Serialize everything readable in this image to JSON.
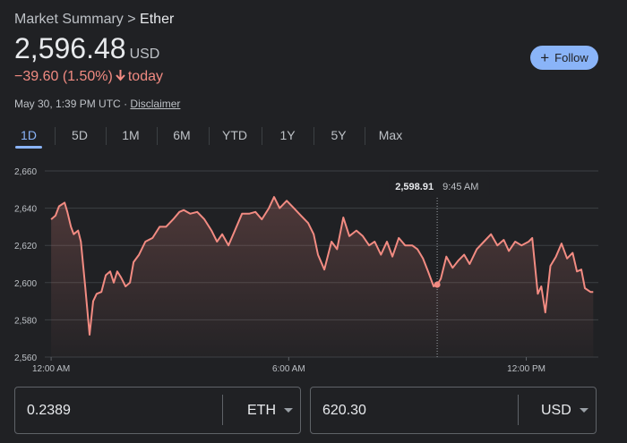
{
  "header": {
    "breadcrumb": "Market Summary",
    "separator": ">",
    "name": "Ether",
    "price": "2,596.48",
    "currency": "USD",
    "change": "−39.60 (1.50%)",
    "change_suffix": "today",
    "timestamp": "May 30, 1:39 PM UTC",
    "dot": "·",
    "disclaimer": "Disclaimer",
    "follow": "Follow"
  },
  "tabs": [
    "1D",
    "5D",
    "1M",
    "6M",
    "YTD",
    "1Y",
    "5Y",
    "Max"
  ],
  "chart_data": {
    "type": "line",
    "color": "#f28b82",
    "x": [
      0,
      0.11,
      0.2,
      0.34,
      0.41,
      0.5,
      0.57,
      0.68,
      0.75,
      0.86,
      0.97,
      1.06,
      1.15,
      1.27,
      1.38,
      1.49,
      1.58,
      1.67,
      1.76,
      1.88,
      1.99,
      2.08,
      2.22,
      2.38,
      2.56,
      2.74,
      2.9,
      3.08,
      3.24,
      3.35,
      3.51,
      3.69,
      3.87,
      4.05,
      4.19,
      4.32,
      4.48,
      4.64,
      4.82,
      5,
      5.16,
      5.32,
      5.5,
      5.63,
      5.77,
      5.95,
      6.13,
      6.31,
      6.49,
      6.63,
      6.74,
      6.9,
      7.08,
      7.22,
      7.38,
      7.53,
      7.71,
      7.87,
      8.03,
      8.17,
      8.33,
      8.48,
      8.62,
      8.78,
      8.94,
      9.12,
      9.25,
      9.39,
      9.52,
      9.66,
      9.75,
      9.84,
      9.98,
      10.14,
      10.29,
      10.43,
      10.57,
      10.75,
      10.93,
      11.11,
      11.27,
      11.43,
      11.56,
      11.72,
      11.88,
      12.06,
      12.15,
      12.29,
      12.38,
      12.48,
      12.61,
      12.75,
      12.89,
      13.03,
      13.17,
      13.28,
      13.39,
      13.48,
      13.62,
      13.69
    ],
    "values": [
      2634,
      2636,
      2641,
      2643,
      2638,
      2630,
      2626,
      2628,
      2622,
      2598,
      2572,
      2590,
      2594,
      2595,
      2604,
      2606,
      2600,
      2606,
      2603,
      2598,
      2600,
      2611,
      2615,
      2622,
      2624,
      2630,
      2630,
      2634,
      2638,
      2639,
      2637,
      2638,
      2634,
      2628,
      2622,
      2626,
      2620,
      2628,
      2637,
      2637,
      2638,
      2634,
      2640,
      2646,
      2640,
      2644,
      2640,
      2636,
      2632,
      2626,
      2615,
      2607,
      2622,
      2618,
      2635,
      2625,
      2628,
      2625,
      2620,
      2622,
      2615,
      2622,
      2614,
      2624,
      2620,
      2620,
      2618,
      2613,
      2606,
      2598,
      2598.91,
      2602,
      2614,
      2608,
      2612,
      2615,
      2610,
      2618,
      2622,
      2626,
      2620,
      2623,
      2617,
      2622,
      2620,
      2622,
      2624,
      2594,
      2598,
      2584,
      2609,
      2614,
      2621,
      2613,
      2616,
      2606,
      2607,
      2597,
      2595,
      2595
    ],
    "xlim": [
      -0.93,
      13.82
    ],
    "xticks": [
      {
        "value": 0,
        "label": "12:00 AM"
      },
      {
        "value": 6,
        "label": "6:00 AM"
      },
      {
        "value": 12,
        "label": "12:00 PM"
      }
    ],
    "ylim": [
      2560,
      2660
    ],
    "yticks": [
      {
        "value": 2560,
        "label": "2,560"
      },
      {
        "value": 2580,
        "label": "2,580"
      },
      {
        "value": 2600,
        "label": "2,600"
      },
      {
        "value": 2620,
        "label": "2,620"
      },
      {
        "value": 2640,
        "label": "2,640"
      },
      {
        "value": 2660,
        "label": "2,660"
      }
    ],
    "grid": true,
    "tooltip": {
      "x": 9.75,
      "value": 2598.91,
      "value_label": "2,598.91",
      "time_label": "9:45 AM"
    }
  },
  "converter": {
    "from_amount": "0.2389",
    "from_unit": "ETH",
    "to_amount": "620.30",
    "to_unit": "USD"
  }
}
